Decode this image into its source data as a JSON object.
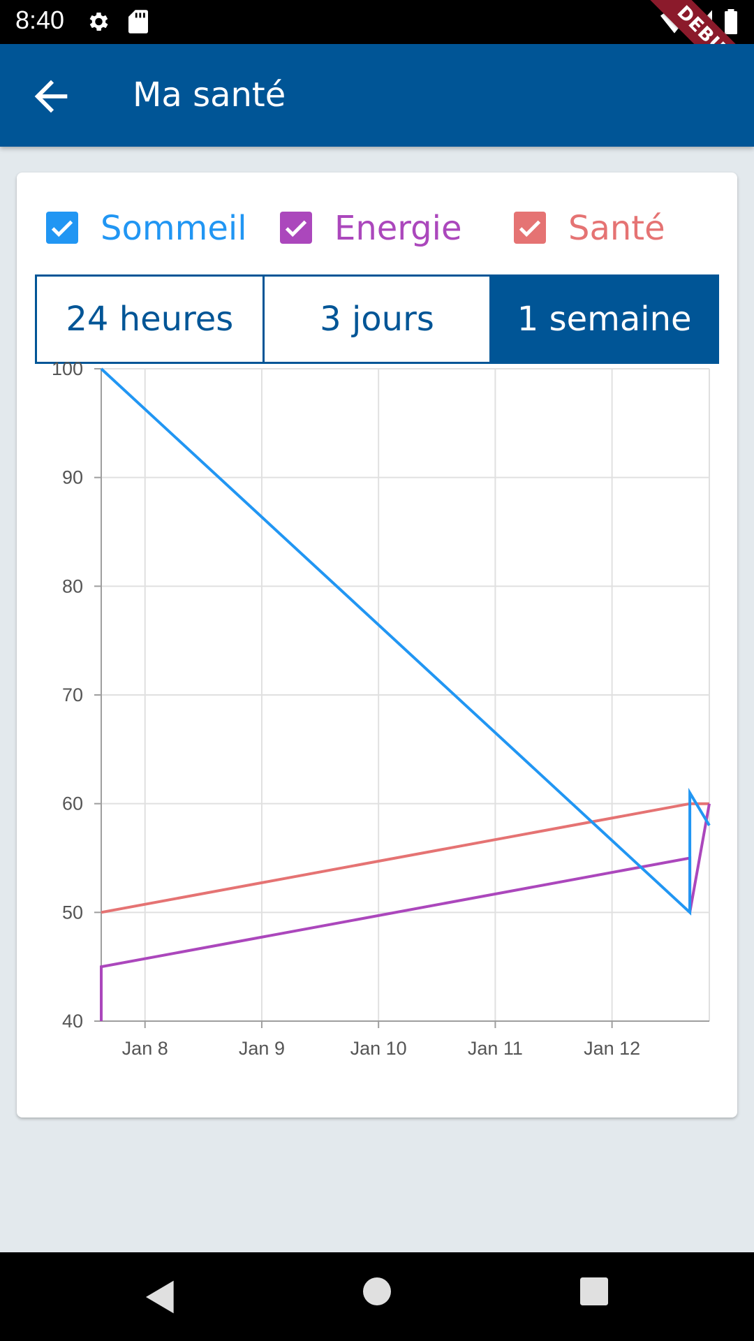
{
  "status_bar": {
    "time": "8:40",
    "icons": [
      "gear-icon",
      "sd-card-icon",
      "wifi-icon",
      "signal-icon",
      "battery-icon"
    ],
    "debug_banner": "DEBUG"
  },
  "app_bar": {
    "title": "Ma santé",
    "back_icon": "arrow-back-icon",
    "color": "#005596"
  },
  "legend": [
    {
      "label": "Sommeil",
      "checked": true,
      "color": "#2196f3"
    },
    {
      "label": "Energie",
      "checked": true,
      "color": "#ab47bc"
    },
    {
      "label": "Santé",
      "checked": true,
      "color": "#e57373"
    }
  ],
  "range_selector": {
    "options": [
      "24 heures",
      "3 jours",
      "1 semaine"
    ],
    "selected": "1 semaine"
  },
  "chart_data": {
    "type": "line",
    "x_ticks": [
      "Jan 8",
      "Jan 9",
      "Jan 10",
      "Jan 11",
      "Jan 12"
    ],
    "xlim": [
      "2023-01-07 15:00",
      "2023-01-12 20:00"
    ],
    "ylim": [
      40,
      100
    ],
    "y_ticks": [
      40,
      50,
      60,
      70,
      80,
      90,
      100
    ],
    "grid": true,
    "series": [
      {
        "name": "Sommeil",
        "color": "#2196f3",
        "points": [
          [
            "2023-01-07 15:00",
            100
          ],
          [
            "2023-01-12 16:00",
            50
          ],
          [
            "2023-01-12 16:00",
            61
          ],
          [
            "2023-01-12 20:00",
            58
          ]
        ]
      },
      {
        "name": "Energie",
        "color": "#ab47bc",
        "points": [
          [
            "2023-01-07 15:00",
            40
          ],
          [
            "2023-01-07 15:00",
            45
          ],
          [
            "2023-01-12 16:00",
            55
          ],
          [
            "2023-01-12 16:00",
            50
          ],
          [
            "2023-01-12 20:00",
            60
          ]
        ]
      },
      {
        "name": "Santé",
        "color": "#e57373",
        "points": [
          [
            "2023-01-07 15:00",
            50
          ],
          [
            "2023-01-12 16:00",
            60
          ],
          [
            "2023-01-12 20:00",
            60
          ]
        ]
      }
    ]
  },
  "nav_bar": {
    "icons": [
      "nav-back-icon",
      "nav-home-icon",
      "nav-recent-icon"
    ]
  }
}
